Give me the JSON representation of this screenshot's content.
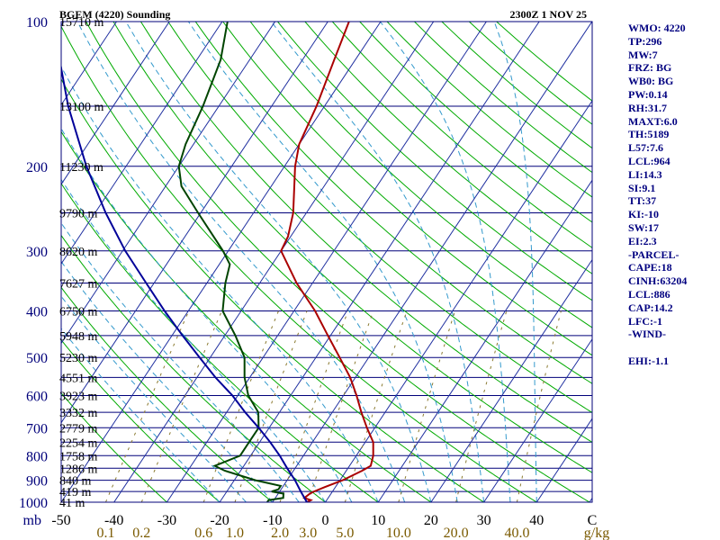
{
  "chart_data": {
    "type": "line",
    "title": "BGEM (4220) Sounding",
    "datetime": "2300Z  1 NOV 25",
    "pressure_levels": [
      100,
      200,
      300,
      400,
      500,
      600,
      700,
      800,
      900,
      1000
    ],
    "pressure_axis_labels": [
      "100",
      "200",
      "300",
      "400",
      "500",
      "600",
      "700",
      "800",
      "900",
      "1000"
    ],
    "height_labels": [
      {
        "p": 100,
        "label": "15710 m"
      },
      {
        "p": 150,
        "label": "13100 m"
      },
      {
        "p": 200,
        "label": "11230 m"
      },
      {
        "p": 250,
        "label": "9790 m"
      },
      {
        "p": 300,
        "label": "8620 m"
      },
      {
        "p": 350,
        "label": "7627 m"
      },
      {
        "p": 400,
        "label": "6750 m"
      },
      {
        "p": 450,
        "label": "5948 m"
      },
      {
        "p": 500,
        "label": "5230 m"
      },
      {
        "p": 550,
        "label": "4551 m"
      },
      {
        "p": 600,
        "label": "3923 m"
      },
      {
        "p": 650,
        "label": "3332 m"
      },
      {
        "p": 700,
        "label": "2779 m"
      },
      {
        "p": 750,
        "label": "2254 m"
      },
      {
        "p": 800,
        "label": "1758 m"
      },
      {
        "p": 850,
        "label": "1286 m"
      },
      {
        "p": 900,
        "label": "840 m"
      },
      {
        "p": 950,
        "label": "419 m"
      },
      {
        "p": 1000,
        "label": "41 m"
      }
    ],
    "x_unit_label": "mb",
    "temperature_ticks": [
      -50,
      -40,
      -30,
      -20,
      -10,
      0,
      10,
      20,
      30,
      40
    ],
    "temperature_tick_labels": [
      "-50",
      "-40",
      "-30",
      "-20",
      "-10",
      "0",
      "10",
      "20",
      "30",
      "40"
    ],
    "temperature_unit_label": "C",
    "mixing_ratio_ticks": [
      0.1,
      0.2,
      0.6,
      1.0,
      2.0,
      3.0,
      5.0,
      10.0,
      20.0,
      40.0
    ],
    "mixing_ratio_labels": [
      "0.1",
      "0.2",
      "0.6",
      "1.0",
      "2.0",
      "3.0",
      "5.0",
      "10.0",
      "20.0",
      "40.0"
    ],
    "mixing_ratio_unit_label": "g/kg",
    "series": [
      {
        "name": "temperature",
        "color": "#aa0000",
        "points": [
          [
            1000,
            -3.5
          ],
          [
            990,
            -3.0
          ],
          [
            980,
            -4.5
          ],
          [
            960,
            -4.0
          ],
          [
            950,
            -3.5
          ],
          [
            930,
            -2.0
          ],
          [
            900,
            0.5
          ],
          [
            860,
            3.0
          ],
          [
            840,
            4.0
          ],
          [
            800,
            3.2
          ],
          [
            750,
            1.5
          ],
          [
            700,
            -1.5
          ],
          [
            650,
            -4.5
          ],
          [
            600,
            -7.5
          ],
          [
            550,
            -11.0
          ],
          [
            500,
            -15.5
          ],
          [
            450,
            -20.5
          ],
          [
            400,
            -26.0
          ],
          [
            350,
            -33.0
          ],
          [
            300,
            -40.0
          ],
          [
            280,
            -40.5
          ],
          [
            250,
            -42.5
          ],
          [
            200,
            -48.0
          ],
          [
            180,
            -50.0
          ],
          [
            150,
            -51.5
          ],
          [
            120,
            -54.0
          ],
          [
            100,
            -56.0
          ]
        ]
      },
      {
        "name": "dewpoint",
        "color": "#004400",
        "points": [
          [
            1000,
            -11.0
          ],
          [
            990,
            -11.0
          ],
          [
            980,
            -8.5
          ],
          [
            960,
            -9.0
          ],
          [
            950,
            -11.5
          ],
          [
            940,
            -10.5
          ],
          [
            925,
            -10.5
          ],
          [
            900,
            -16.0
          ],
          [
            860,
            -23.0
          ],
          [
            840,
            -25.5
          ],
          [
            800,
            -22.0
          ],
          [
            750,
            -22.0
          ],
          [
            700,
            -22.0
          ],
          [
            650,
            -24.0
          ],
          [
            600,
            -28.0
          ],
          [
            550,
            -31.0
          ],
          [
            500,
            -33.5
          ],
          [
            450,
            -38.0
          ],
          [
            400,
            -43.5
          ],
          [
            350,
            -46.5
          ],
          [
            320,
            -48.0
          ],
          [
            300,
            -51.0
          ],
          [
            250,
            -60.5
          ],
          [
            220,
            -67.0
          ],
          [
            200,
            -70.0
          ],
          [
            180,
            -71.5
          ],
          [
            150,
            -73.0
          ],
          [
            120,
            -75.5
          ],
          [
            100,
            -79.0
          ]
        ]
      },
      {
        "name": "parcel",
        "color": "#000099",
        "points": [
          [
            1000,
            -3.5
          ],
          [
            950,
            -6.0
          ],
          [
            900,
            -8.5
          ],
          [
            850,
            -11.5
          ],
          [
            800,
            -14.5
          ],
          [
            750,
            -18.0
          ],
          [
            700,
            -22.0
          ],
          [
            650,
            -26.5
          ],
          [
            600,
            -31.0
          ],
          [
            550,
            -36.5
          ],
          [
            500,
            -42.0
          ],
          [
            450,
            -48.0
          ],
          [
            400,
            -54.5
          ],
          [
            350,
            -61.5
          ],
          [
            300,
            -69.5
          ],
          [
            250,
            -78.0
          ],
          [
            200,
            -87.5
          ],
          [
            150,
            -98.5
          ],
          [
            120,
            -106.0
          ]
        ]
      }
    ]
  },
  "side_panel": [
    "WMO: 4220",
    "TP:296",
    "MW:7",
    "FRZ: BG",
    "WB0: BG",
    "PW:0.14",
    "RH:31.7",
    "MAXT:6.0",
    "TH:5189",
    "L57:7.6",
    "LCL:964",
    "LI:14.3",
    "SI:9.1",
    "TT:37",
    "KI:-10",
    "SW:17",
    "EI:2.3",
    "-PARCEL-",
    "CAPE:18",
    "CINH:63204",
    "LCL:886",
    "CAP:14.2",
    "LFC:-1",
    "-WIND-",
    "",
    "EHI:-1.1"
  ],
  "colors": {
    "isobar": "#00007a",
    "isotherm": "#2030a0",
    "dry_adiabat": "#00aa00",
    "moist_adiabat": "#3399cc",
    "mixing_ratio": "#8a7a30",
    "temperature": "#aa0000",
    "dewpoint": "#004400",
    "parcel": "#000099"
  }
}
